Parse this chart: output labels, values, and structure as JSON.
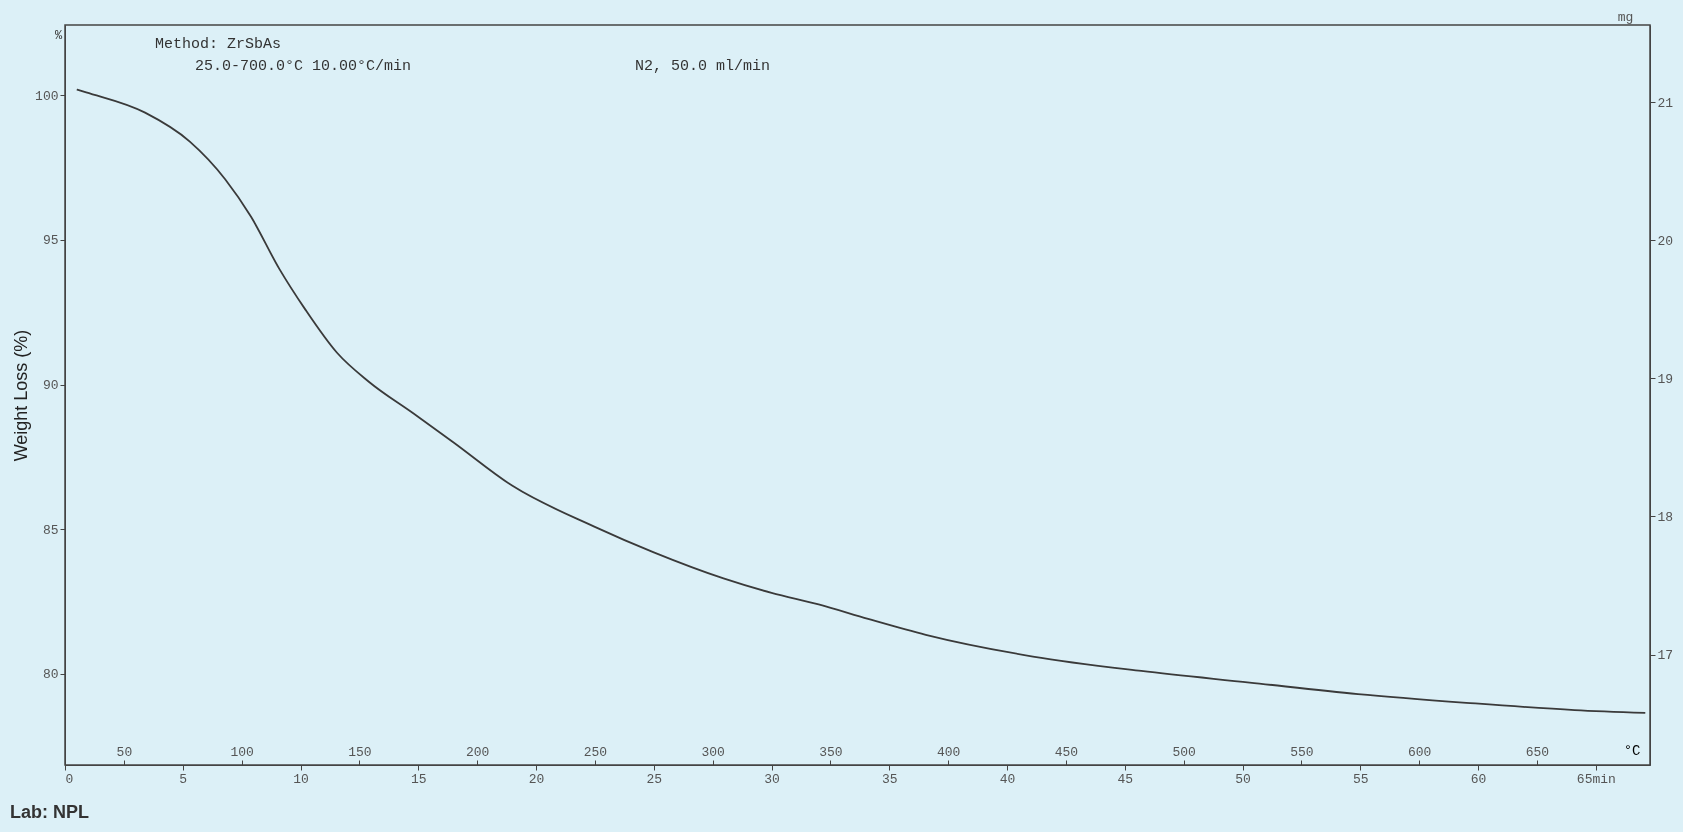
{
  "chart_data": {
    "type": "line",
    "ylabel": "Weight Loss (%)",
    "y2label": "mg",
    "x2label": "°C",
    "annotations": [
      "Method: ZrSbAs",
      "25.0-700.0°C 10.00°C/min",
      "N2, 50.0 ml/min",
      "%",
      "Lab: NPL"
    ],
    "x": [
      0.5,
      0.9,
      3.4,
      5.3,
      6.8,
      7.9,
      9.1,
      10.2,
      11.55,
      12.9,
      14.8,
      16.5,
      19.0,
      22.45,
      25.0,
      27.96,
      30.0,
      32.0,
      34.1,
      36.55,
      41.1,
      45.7,
      50.3,
      54.9,
      59.5,
      64.1,
      67.1
    ],
    "series": [
      {
        "color": "#3a3a3a",
        "values": [
          100.2,
          100.1,
          99.4,
          98.4,
          97.1,
          95.8,
          94.0,
          92.6,
          91.1,
          90.1,
          89.0,
          88.0,
          86.5,
          85.1,
          84.2,
          83.3,
          82.8,
          82.4,
          81.9,
          81.35,
          80.6,
          80.1,
          79.7,
          79.3,
          79.0,
          78.75,
          78.65
        ]
      }
    ],
    "xlim": [
      0,
      67.3
    ],
    "xticks": [
      0,
      5,
      10,
      15,
      20,
      25,
      30,
      35,
      40,
      45,
      50,
      55,
      60,
      {
        "value": 65,
        "label": "65min"
      }
    ],
    "x2lim": [
      25,
      698
    ],
    "x2ticks": [
      50,
      100,
      150,
      200,
      250,
      300,
      350,
      400,
      450,
      500,
      550,
      600,
      650
    ],
    "ylim": [
      76.85,
      102.43
    ],
    "yticks": [
      80,
      85,
      90,
      95,
      100
    ],
    "y2lim": [
      16.2,
      21.56
    ],
    "y2ticks": [
      17,
      18,
      19,
      20,
      21
    ],
    "grid": false,
    "marker": "none",
    "line_style": "solid"
  }
}
